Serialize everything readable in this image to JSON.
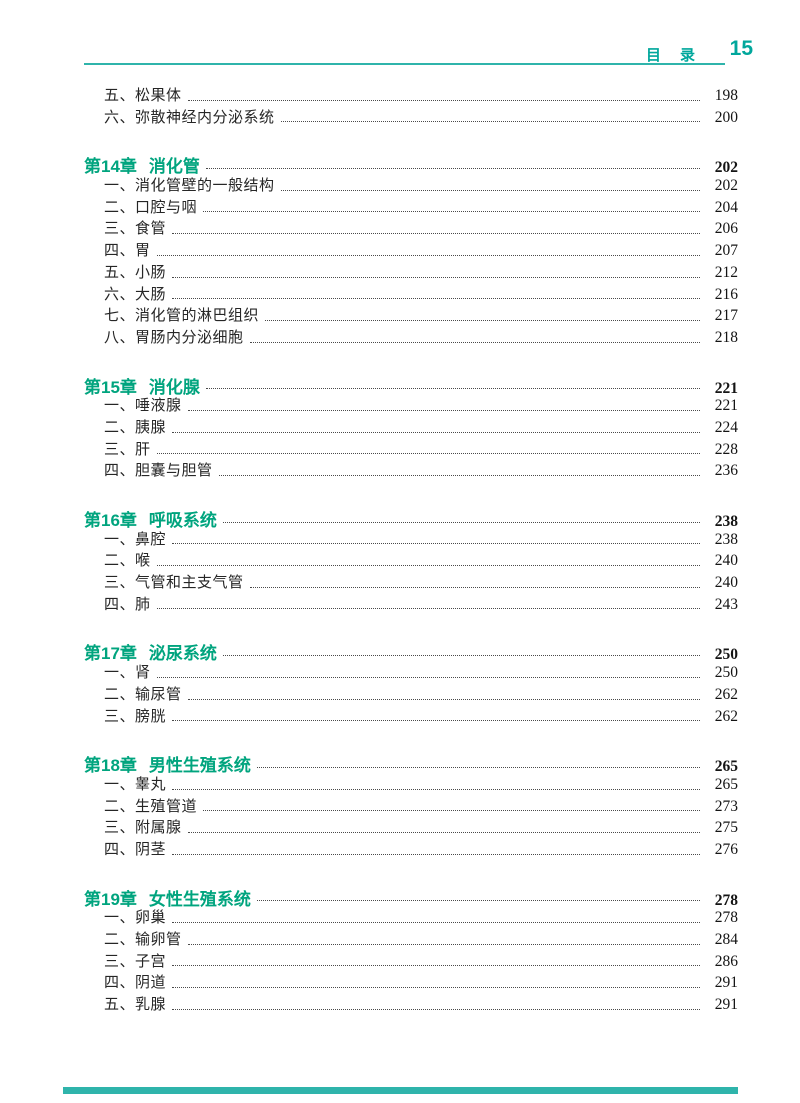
{
  "header": {
    "title": "目　录",
    "page_number": "15"
  },
  "colors": {
    "accent_heading": "#00a47e",
    "header_teal": "#00a79c",
    "rule_teal": "#2fb4ab",
    "body_text": "#262626"
  },
  "toc": {
    "sections": [
      {
        "chapter_no": "",
        "chapter_title": "",
        "chapter_page": "",
        "entries": [
          {
            "label": "五、松果体",
            "page": "198"
          },
          {
            "label": "六、弥散神经内分泌系统",
            "page": "200"
          }
        ]
      },
      {
        "chapter_no": "第14章",
        "chapter_title": "消化管",
        "chapter_page": "202",
        "entries": [
          {
            "label": "一、消化管壁的一般结构",
            "page": "202"
          },
          {
            "label": "二、口腔与咽",
            "page": "204"
          },
          {
            "label": "三、食管",
            "page": "206"
          },
          {
            "label": "四、胃",
            "page": "207"
          },
          {
            "label": "五、小肠",
            "page": "212"
          },
          {
            "label": "六、大肠",
            "page": "216"
          },
          {
            "label": "七、消化管的淋巴组织",
            "page": "217"
          },
          {
            "label": "八、胃肠内分泌细胞",
            "page": "218"
          }
        ]
      },
      {
        "chapter_no": "第15章",
        "chapter_title": "消化腺",
        "chapter_page": "221",
        "entries": [
          {
            "label": "一、唾液腺",
            "page": "221"
          },
          {
            "label": "二、胰腺",
            "page": "224"
          },
          {
            "label": "三、肝",
            "page": "228"
          },
          {
            "label": "四、胆囊与胆管",
            "page": "236"
          }
        ]
      },
      {
        "chapter_no": "第16章",
        "chapter_title": "呼吸系统",
        "chapter_page": "238",
        "entries": [
          {
            "label": "一、鼻腔",
            "page": "238"
          },
          {
            "label": "二、喉",
            "page": "240"
          },
          {
            "label": "三、气管和主支气管",
            "page": "240"
          },
          {
            "label": "四、肺",
            "page": "243"
          }
        ]
      },
      {
        "chapter_no": "第17章",
        "chapter_title": "泌尿系统",
        "chapter_page": "250",
        "entries": [
          {
            "label": "一、肾",
            "page": "250"
          },
          {
            "label": "二、输尿管",
            "page": "262"
          },
          {
            "label": "三、膀胱",
            "page": "262"
          }
        ]
      },
      {
        "chapter_no": "第18章",
        "chapter_title": "男性生殖系统",
        "chapter_page": "265",
        "entries": [
          {
            "label": "一、睾丸",
            "page": "265"
          },
          {
            "label": "二、生殖管道",
            "page": "273"
          },
          {
            "label": "三、附属腺",
            "page": "275"
          },
          {
            "label": "四、阴茎",
            "page": "276"
          }
        ]
      },
      {
        "chapter_no": "第19章",
        "chapter_title": "女性生殖系统",
        "chapter_page": "278",
        "entries": [
          {
            "label": "一、卵巢",
            "page": "278"
          },
          {
            "label": "二、输卵管",
            "page": "284"
          },
          {
            "label": "三、子宫",
            "page": "286"
          },
          {
            "label": "四、阴道",
            "page": "291"
          },
          {
            "label": "五、乳腺",
            "page": "291"
          }
        ]
      }
    ]
  }
}
